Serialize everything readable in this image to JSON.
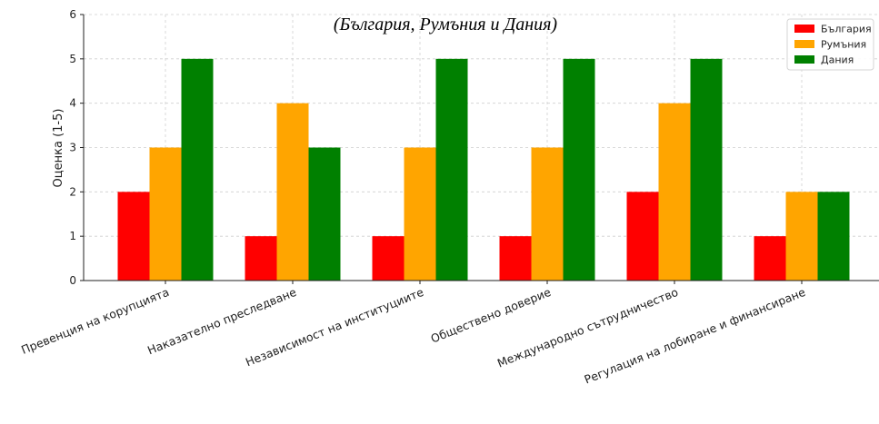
{
  "chart_data": {
    "type": "bar",
    "title": "",
    "subtitle": "(България, Румъния и Дания)",
    "xlabel": "",
    "ylabel": "Оценка (1-5)",
    "ylim": [
      0,
      6
    ],
    "yticks": [
      0,
      1,
      2,
      3,
      4,
      5,
      6
    ],
    "grid": true,
    "legend_position": "top-right",
    "categories": [
      "Превенция на корупцията",
      "Наказателно преследване",
      "Независимост на институциите",
      "Обществено доверие",
      "Международно сътрудничество",
      "Регулация на лобиране и финансиране"
    ],
    "series": [
      {
        "name": "България",
        "color": "#ff0000",
        "values": [
          2,
          1,
          1,
          1,
          2,
          1
        ]
      },
      {
        "name": "Румъния",
        "color": "#ffa500",
        "values": [
          3,
          4,
          3,
          3,
          4,
          2
        ]
      },
      {
        "name": "Дания",
        "color": "#008000",
        "values": [
          5,
          3,
          5,
          5,
          5,
          2
        ]
      }
    ]
  }
}
